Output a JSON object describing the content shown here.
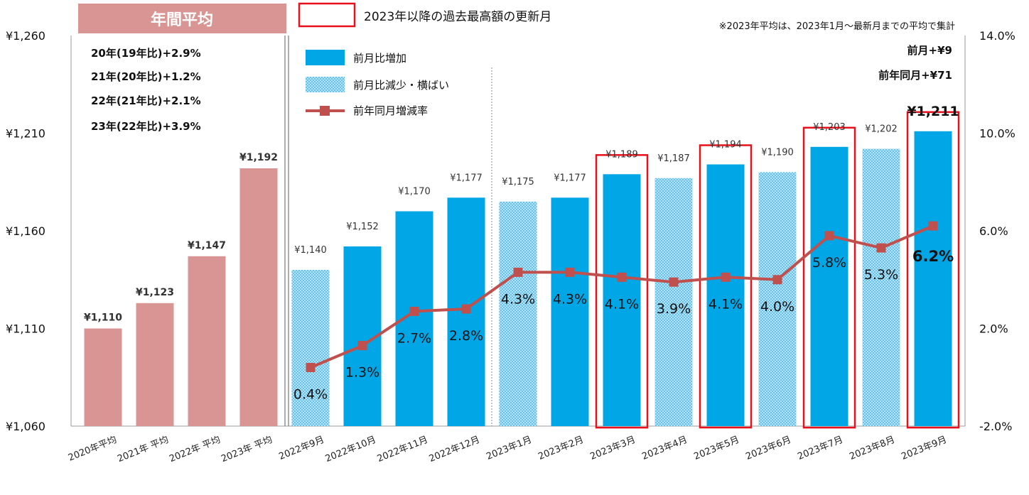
{
  "chart_data": {
    "type": "bar",
    "categories": [
      "2020年平均",
      "2021年 平均",
      "2022年 平均",
      "2023年 平均",
      "2022年9月",
      "2022年10月",
      "2022年11月",
      "2022年12月",
      "2023年1月",
      "2023年2月",
      "2023年3月",
      "2023年4月",
      "2023年5月",
      "2023年6月",
      "2023年7月",
      "2023年8月",
      "2023年9月"
    ],
    "values": [
      1110,
      1123,
      1147,
      1192,
      1140,
      1152,
      1170,
      1177,
      1175,
      1177,
      1189,
      1187,
      1194,
      1190,
      1203,
      1202,
      1211
    ],
    "value_labels": [
      "¥1,110",
      "¥1,123",
      "¥1,147",
      "¥1,192",
      "¥1,140",
      "¥1,152",
      "¥1,170",
      "¥1,177",
      "¥1,175",
      "¥1,177",
      "¥1,189",
      "¥1,187",
      "¥1,194",
      "¥1,190",
      "¥1,203",
      "¥1,202",
      "¥1,211"
    ],
    "bar_kinds": [
      "annual",
      "annual",
      "annual",
      "annual",
      "flat",
      "up",
      "up",
      "up",
      "flat",
      "up",
      "up",
      "flat",
      "up",
      "flat",
      "up",
      "flat",
      "up"
    ],
    "record_highlight": [
      false,
      false,
      false,
      false,
      false,
      false,
      false,
      false,
      false,
      false,
      true,
      false,
      true,
      false,
      true,
      false,
      true
    ],
    "yoy_series": {
      "name": "前年同月増減率",
      "values": [
        null,
        null,
        null,
        null,
        0.4,
        1.3,
        2.7,
        2.8,
        4.3,
        4.3,
        4.1,
        3.9,
        4.1,
        4.0,
        5.8,
        5.3,
        6.2
      ],
      "labels": [
        null,
        null,
        null,
        null,
        "0.4%",
        "1.3%",
        "2.7%",
        "2.8%",
        "4.3%",
        "4.3%",
        "4.1%",
        "3.9%",
        "4.1%",
        "4.0%",
        "5.8%",
        "5.3%",
        "6.2%"
      ]
    },
    "y_left": {
      "min": 1060,
      "max": 1260,
      "ticks": [
        1060,
        1110,
        1160,
        1210,
        1260
      ],
      "tick_labels": [
        "¥1,060",
        "¥1,110",
        "¥1,160",
        "¥1,210",
        "¥1,260"
      ]
    },
    "y_right": {
      "min": -2.0,
      "max": 14.0,
      "ticks": [
        -2,
        2,
        6,
        10,
        14
      ],
      "tick_labels": [
        "-2.0%",
        "2.0%",
        "6.0%",
        "10.0%",
        "14.0%"
      ]
    },
    "legend": {
      "up": "前月比増加",
      "flat": "前月比減少・横ばい",
      "line": "前年同月増減率",
      "record": "2023年以降の過去最高額の更新月"
    },
    "annual_header": "年間平均",
    "annual_changes": [
      "20年(19年比)+2.9%",
      "21年(20年比)+1.2%",
      "22年(21年比)+2.1%",
      "23年(22年比)+3.9%"
    ],
    "note": "※2023年平均は、2023年1月～最新月までの平均で集計",
    "latest_mom": "前月+¥9",
    "latest_yoy": "前年同月+¥71",
    "colors": {
      "annual": "#d99594",
      "annual_header": "#d99594",
      "up": "#00a6e6",
      "flat": "#8fd4f2",
      "line": "#c0504d",
      "record_border": "#e8101a"
    }
  }
}
